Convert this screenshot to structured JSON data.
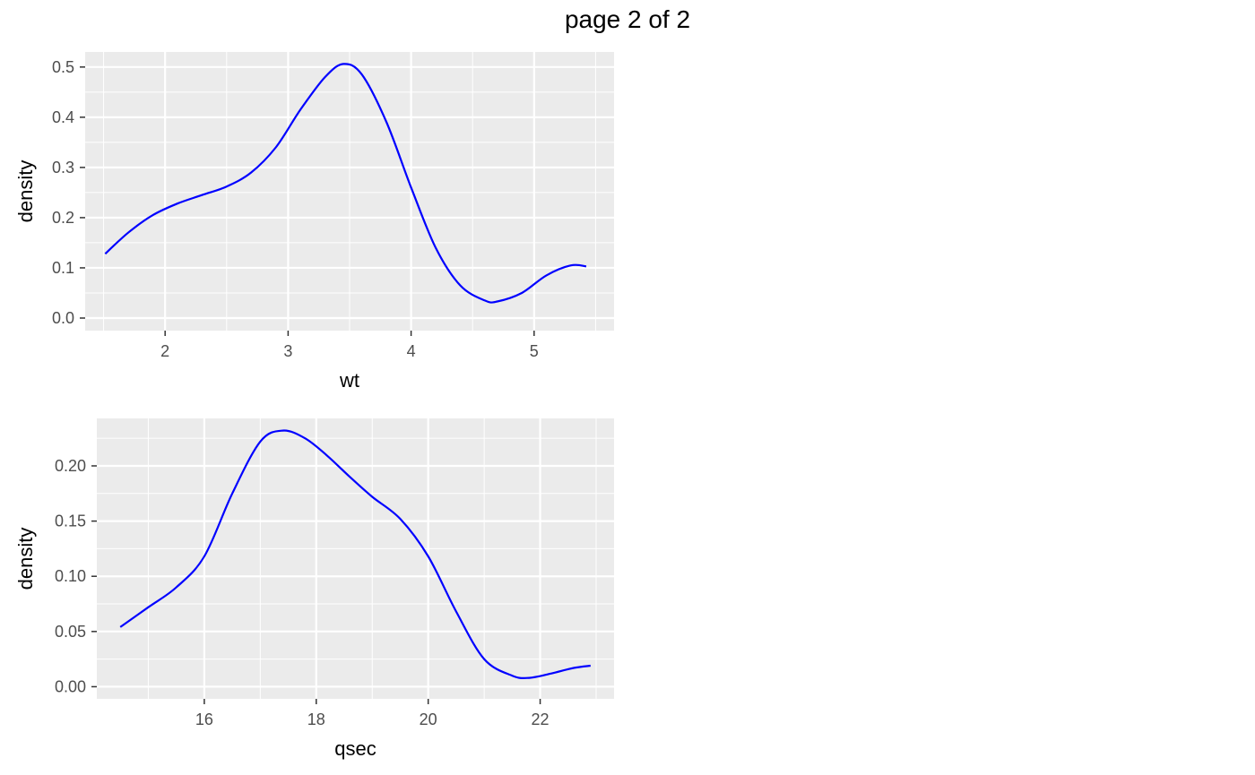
{
  "page_title": "page 2 of 2",
  "chart_data": [
    {
      "type": "line",
      "xlabel": "wt",
      "ylabel": "density",
      "xlim": [
        1.35,
        5.65
      ],
      "ylim": [
        -0.025,
        0.53
      ],
      "x_ticks": [
        2,
        3,
        4,
        5
      ],
      "x_tick_labels": [
        "2",
        "3",
        "4",
        "5"
      ],
      "y_ticks": [
        0.0,
        0.1,
        0.2,
        0.3,
        0.4,
        0.5
      ],
      "y_tick_labels": [
        "0.0",
        "0.1",
        "0.2",
        "0.3",
        "0.4",
        "0.5"
      ],
      "grid": true,
      "line_color": "#0000ff",
      "panel_color": "#ebebeb",
      "series": [
        {
          "x": [
            1.513,
            1.7,
            1.9,
            2.1,
            2.3,
            2.5,
            2.7,
            2.9,
            3.1,
            3.3,
            3.45,
            3.6,
            3.8,
            4.0,
            4.2,
            4.4,
            4.6,
            4.7,
            4.9,
            5.1,
            5.3,
            5.424
          ],
          "y": [
            0.128,
            0.17,
            0.205,
            0.228,
            0.245,
            0.262,
            0.29,
            0.34,
            0.415,
            0.48,
            0.506,
            0.485,
            0.39,
            0.26,
            0.14,
            0.065,
            0.035,
            0.033,
            0.05,
            0.085,
            0.105,
            0.103
          ]
        }
      ]
    },
    {
      "type": "line",
      "xlabel": "qsec",
      "ylabel": "density",
      "xlim": [
        14.08,
        23.32
      ],
      "ylim": [
        -0.011,
        0.243
      ],
      "x_ticks": [
        16,
        18,
        20,
        22
      ],
      "x_tick_labels": [
        "16",
        "18",
        "20",
        "22"
      ],
      "y_ticks": [
        0.0,
        0.05,
        0.1,
        0.15,
        0.2
      ],
      "y_tick_labels": [
        "0.00",
        "0.05",
        "0.10",
        "0.15",
        "0.20"
      ],
      "grid": true,
      "line_color": "#0000ff",
      "panel_color": "#ebebeb",
      "series": [
        {
          "x": [
            14.5,
            15.0,
            15.5,
            16.0,
            16.5,
            17.0,
            17.4,
            17.8,
            18.2,
            18.6,
            19.0,
            19.5,
            20.0,
            20.5,
            21.0,
            21.5,
            21.8,
            22.2,
            22.6,
            22.9
          ],
          "y": [
            0.054,
            0.072,
            0.09,
            0.118,
            0.175,
            0.222,
            0.232,
            0.225,
            0.209,
            0.19,
            0.172,
            0.152,
            0.118,
            0.068,
            0.025,
            0.01,
            0.008,
            0.012,
            0.017,
            0.019
          ]
        }
      ]
    }
  ]
}
